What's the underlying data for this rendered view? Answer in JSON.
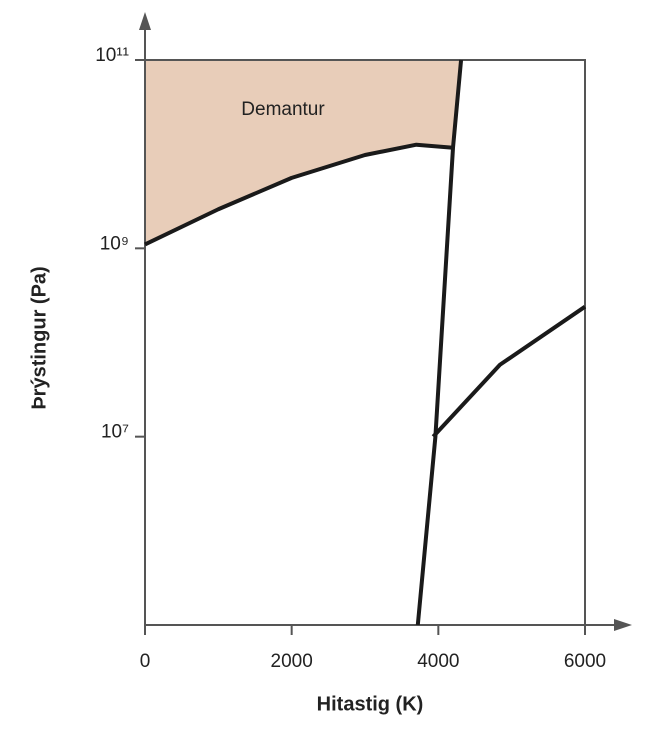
{
  "chart_data": {
    "type": "line",
    "annotation": "Demantur",
    "xlabel": "Hitastig (K)",
    "ylabel": "Þrýstingur (Pa)",
    "xlim": [
      0,
      6000
    ],
    "xticks": [
      0,
      2000,
      4000,
      6000
    ],
    "ylim": [
      100000,
      100000000000
    ],
    "yscale": "log",
    "yticks": [
      {
        "value": 10000000,
        "label": "10⁷"
      },
      {
        "value": 1000000000,
        "label": "10⁹"
      },
      {
        "value": 100000000000,
        "label": "10¹¹"
      }
    ],
    "region_color": "#e8cdb9",
    "series": [
      {
        "color": "#1a1a1a",
        "x": [
          0,
          1000,
          2000,
          3000,
          3700,
          4200
        ],
        "values": [
          1100000000,
          2600000000,
          5600000000,
          9800000000,
          12600000000,
          11700000000
        ]
      },
      {
        "color": "#1a1a1a",
        "x": [
          3720,
          3960,
          4200,
          4310
        ],
        "values": [
          100000,
          10000000,
          11700000000,
          100000000000
        ]
      },
      {
        "color": "#1a1a1a",
        "x": [
          3930,
          4840,
          6000
        ],
        "values": [
          10000000,
          58000000,
          240000000
        ]
      }
    ]
  }
}
